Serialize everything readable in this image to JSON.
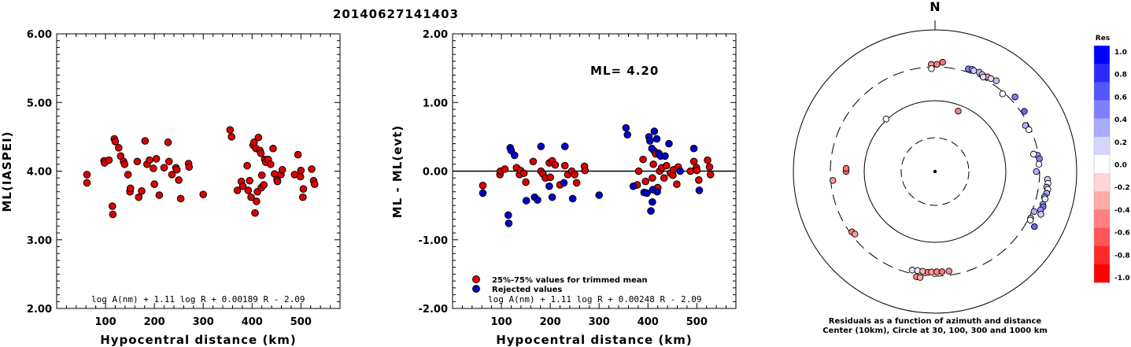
{
  "chart_data": [
    {
      "type": "scatter",
      "title": "20140627141403",
      "xlabel": "Hypocentral distance (km)",
      "ylabel": "ML(IASPEI)",
      "xlim": [
        0,
        580
      ],
      "ylim": [
        2.0,
        6.0
      ],
      "xticks": [
        "100",
        "200",
        "300",
        "400",
        "500"
      ],
      "yticks": [
        "2.00",
        "3.00",
        "4.00",
        "5.00",
        "6.00"
      ],
      "formula": "log A(nm) + 1.11 log R + 0.00189 R - 2.09",
      "series": [
        {
          "color": "#dd0000",
          "points": [
            [
              62,
              3.95
            ],
            [
              62,
              3.83
            ],
            [
              97,
              4.15
            ],
            [
              98,
              4.12
            ],
            [
              107,
              4.16
            ],
            [
              114,
              3.49
            ],
            [
              115,
              3.37
            ],
            [
              118,
              4.47
            ],
            [
              120,
              4.43
            ],
            [
              127,
              4.34
            ],
            [
              131,
              4.22
            ],
            [
              137,
              4.14
            ],
            [
              139,
              4.1
            ],
            [
              146,
              3.95
            ],
            [
              150,
              3.7
            ],
            [
              151,
              3.75
            ],
            [
              165,
              4.14
            ],
            [
              168,
              3.62
            ],
            [
              174,
              3.71
            ],
            [
              181,
              4.44
            ],
            [
              185,
              4.1
            ],
            [
              190,
              4.16
            ],
            [
              198,
              4.04
            ],
            [
              200,
              3.81
            ],
            [
              204,
              4.18
            ],
            [
              210,
              3.65
            ],
            [
              220,
              4.05
            ],
            [
              228,
              4.42
            ],
            [
              230,
              4.14
            ],
            [
              236,
              3.95
            ],
            [
              244,
              4.05
            ],
            [
              246,
              4.02
            ],
            [
              250,
              3.87
            ],
            [
              254,
              3.6
            ],
            [
              270,
              4.11
            ],
            [
              271,
              4.06
            ],
            [
              300,
              3.66
            ],
            [
              355,
              4.6
            ],
            [
              358,
              4.5
            ],
            [
              370,
              3.72
            ],
            [
              378,
              3.85
            ],
            [
              381,
              3.78
            ],
            [
              390,
              4.08
            ],
            [
              392,
              3.72
            ],
            [
              395,
              3.86
            ],
            [
              398,
              3.62
            ],
            [
              402,
              4.38
            ],
            [
              404,
              4.42
            ],
            [
              406,
              3.39
            ],
            [
              408,
              4.33
            ],
            [
              409,
              3.56
            ],
            [
              411,
              3.7
            ],
            [
              413,
              4.49
            ],
            [
              416,
              4.3
            ],
            [
              418,
              4.26
            ],
            [
              419,
              3.76
            ],
            [
              420,
              3.94
            ],
            [
              424,
              3.8
            ],
            [
              426,
              4.17
            ],
            [
              428,
              4.13
            ],
            [
              433,
              4.17
            ],
            [
              438,
              4.1
            ],
            [
              443,
              4.33
            ],
            [
              446,
              3.96
            ],
            [
              451,
              3.88
            ],
            [
              452,
              3.85
            ],
            [
              459,
              3.95
            ],
            [
              462,
              4.02
            ],
            [
              487,
              3.95
            ],
            [
              494,
              4.24
            ],
            [
              499,
              3.92
            ],
            [
              500,
              4.01
            ],
            [
              504,
              3.62
            ],
            [
              505,
              3.74
            ],
            [
              522,
              4.03
            ],
            [
              526,
              3.86
            ],
            [
              528,
              3.81
            ]
          ]
        }
      ]
    },
    {
      "type": "scatter",
      "xlabel": "Hypocentral distance (km)",
      "ylabel": "ML - ML(evt)",
      "xlim": [
        0,
        580
      ],
      "ylim": [
        -2.0,
        2.0
      ],
      "xticks": [
        "100",
        "200",
        "300",
        "400",
        "500"
      ],
      "yticks": [
        "-2.00",
        "-1.00",
        "0.00",
        "1.00",
        "2.00"
      ],
      "annotation": "ML= 4.20",
      "formula": "log A(nm) + 1.11 log R + 0.00248 R - 2.09",
      "legend": [
        "25%-75% values for trimmed mean",
        "Rejected values"
      ],
      "series": [
        {
          "name": "25%-75% values for trimmed mean",
          "color": "#dd0000",
          "points": [
            [
              62,
              -0.21
            ],
            [
              97,
              -0.05
            ],
            [
              98,
              0.0
            ],
            [
              107,
              0.03
            ],
            [
              131,
              0.05
            ],
            [
              137,
              -0.05
            ],
            [
              139,
              0.01
            ],
            [
              146,
              -0.03
            ],
            [
              150,
              -0.16
            ],
            [
              165,
              0.14
            ],
            [
              181,
              0.0
            ],
            [
              185,
              -0.04
            ],
            [
              190,
              -0.1
            ],
            [
              198,
              0.12
            ],
            [
              200,
              -0.09
            ],
            [
              204,
              0.15
            ],
            [
              210,
              0.09
            ],
            [
              220,
              -0.2
            ],
            [
              230,
              0.08
            ],
            [
              236,
              -0.05
            ],
            [
              244,
              0.0
            ],
            [
              250,
              -0.05
            ],
            [
              254,
              -0.17
            ],
            [
              270,
              0.07
            ],
            [
              271,
              0.01
            ],
            [
              378,
              -0.2
            ],
            [
              381,
              0.0
            ],
            [
              390,
              0.17
            ],
            [
              395,
              -0.15
            ],
            [
              409,
              -0.1
            ],
            [
              411,
              0.1
            ],
            [
              413,
              0.29
            ],
            [
              416,
              0.25
            ],
            [
              420,
              -0.24
            ],
            [
              424,
              0.0
            ],
            [
              428,
              0.05
            ],
            [
              433,
              -0.1
            ],
            [
              438,
              0.08
            ],
            [
              446,
              -0.03
            ],
            [
              451,
              -0.06
            ],
            [
              452,
              0.02
            ],
            [
              459,
              -0.19
            ],
            [
              462,
              0.06
            ],
            [
              487,
              0.0
            ],
            [
              494,
              0.14
            ],
            [
              499,
              0.05
            ],
            [
              500,
              0.01
            ],
            [
              504,
              -0.13
            ],
            [
              522,
              0.16
            ],
            [
              526,
              0.06
            ],
            [
              528,
              -0.05
            ]
          ]
        },
        {
          "name": "Rejected values",
          "color": "#0000cc",
          "points": [
            [
              62,
              -0.32
            ],
            [
              114,
              -0.64
            ],
            [
              115,
              -0.76
            ],
            [
              118,
              0.34
            ],
            [
              120,
              0.3
            ],
            [
              127,
              0.23
            ],
            [
              151,
              -0.43
            ],
            [
              168,
              -0.38
            ],
            [
              174,
              -0.42
            ],
            [
              181,
              0.36
            ],
            [
              198,
              -0.22
            ],
            [
              204,
              -0.38
            ],
            [
              228,
              -0.17
            ],
            [
              230,
              0.36
            ],
            [
              246,
              -0.4
            ],
            [
              300,
              -0.35
            ],
            [
              355,
              0.63
            ],
            [
              358,
              0.53
            ],
            [
              370,
              -0.22
            ],
            [
              392,
              -0.31
            ],
            [
              398,
              -0.32
            ],
            [
              402,
              0.5
            ],
            [
              404,
              0.44
            ],
            [
              406,
              -0.58
            ],
            [
              408,
              0.33
            ],
            [
              409,
              -0.45
            ],
            [
              410,
              -0.27
            ],
            [
              413,
              0.58
            ],
            [
              418,
              0.47
            ],
            [
              419,
              -0.3
            ],
            [
              422,
              0.26
            ],
            [
              426,
              0.22
            ],
            [
              435,
              0.22
            ],
            [
              443,
              0.4
            ],
            [
              466,
              0.0
            ],
            [
              494,
              0.33
            ],
            [
              505,
              -0.28
            ]
          ]
        }
      ]
    },
    {
      "type": "scatter",
      "subtype": "polar-residuals",
      "north_label": "N",
      "caption_line1": "Residuals as a function of azimuth and distance",
      "caption_line2": "Center (10km), Circle at 30, 100, 300 and 1000 km",
      "rings_km": [
        30,
        100,
        300,
        1000
      ],
      "colorbar": {
        "title": "Res",
        "labels": [
          "1.0",
          "0.8",
          "0.6",
          "0.4",
          "0.2",
          "0.0",
          "-0.2",
          "-0.4",
          "-0.6",
          "-0.8",
          "-1.0"
        ],
        "colors": [
          "#0000ff",
          "#2b2bff",
          "#5555ff",
          "#8080ff",
          "#aaaaff",
          "#d5d5ff",
          "#ffffff",
          "#ffd5d5",
          "#ffaaaa",
          "#ff8080",
          "#ff5555",
          "#ff2b2b",
          "#ff0000"
        ]
      },
      "points": [
        {
          "az": 4,
          "dist": 352,
          "res": -0.55
        },
        {
          "az": 358,
          "dist": 327,
          "res": -0.45
        },
        {
          "az": 1,
          "dist": 326,
          "res": -0.5
        },
        {
          "az": 18,
          "dist": 333,
          "res": 0.5
        },
        {
          "az": 20,
          "dist": 342,
          "res": 0.4
        },
        {
          "az": 21,
          "dist": 336,
          "res": 0.2
        },
        {
          "az": 24,
          "dist": 343,
          "res": 0.3
        },
        {
          "az": 26,
          "dist": 332,
          "res": -0.2
        },
        {
          "az": 29,
          "dist": 336,
          "res": -0.35
        },
        {
          "az": 31,
          "dist": 339,
          "res": 0.15
        },
        {
          "az": 34,
          "dist": 351,
          "res": 0.25
        },
        {
          "az": 27,
          "dist": 314,
          "res": 0.15
        },
        {
          "az": 358,
          "dist": 284,
          "res": 0.0
        },
        {
          "az": 41,
          "dist": 284,
          "res": 0.0
        },
        {
          "az": 47,
          "dist": 350,
          "res": 0.5
        },
        {
          "az": 56,
          "dist": 331,
          "res": 0.6
        },
        {
          "az": 63,
          "dist": 270,
          "res": 0.3
        },
        {
          "az": 66,
          "dist": 282,
          "res": 0.0
        },
        {
          "az": 317,
          "dist": 103,
          "res": 0.0
        },
        {
          "az": 21,
          "dist": 82,
          "res": -0.5
        },
        {
          "az": 81,
          "dist": 292,
          "res": 0.4
        },
        {
          "az": 83,
          "dist": 305,
          "res": 0.5
        },
        {
          "az": 86,
          "dist": 295,
          "res": 0.0
        },
        {
          "az": 80,
          "dist": 258,
          "res": 0.0
        },
        {
          "az": 90,
          "dist": 269,
          "res": 0.3
        },
        {
          "az": 94,
          "dist": 390,
          "res": 0.2
        },
        {
          "az": 96,
          "dist": 400,
          "res": 0.0
        },
        {
          "az": 98,
          "dist": 390,
          "res": 0.3
        },
        {
          "az": 99,
          "dist": 410,
          "res": 0.0
        },
        {
          "az": 101,
          "dist": 402,
          "res": 0.35
        },
        {
          "az": 103,
          "dist": 385,
          "res": 0.45
        },
        {
          "az": 104,
          "dist": 398,
          "res": 0.0
        },
        {
          "az": 107,
          "dist": 390,
          "res": 0.3
        },
        {
          "az": 108,
          "dist": 402,
          "res": 0.55
        },
        {
          "az": 110,
          "dist": 385,
          "res": 0.4
        },
        {
          "az": 112,
          "dist": 408,
          "res": 0.2
        },
        {
          "az": 112,
          "dist": 322,
          "res": 0.3
        },
        {
          "az": 116,
          "dist": 317,
          "res": -0.3
        },
        {
          "az": 119,
          "dist": 402,
          "res": 0.6
        },
        {
          "az": 117,
          "dist": 323,
          "res": 0.0
        },
        {
          "az": 270,
          "dist": 180,
          "res": -0.6
        },
        {
          "az": 272,
          "dist": 180,
          "res": -0.55
        },
        {
          "az": 265,
          "dist": 280,
          "res": -0.4
        },
        {
          "az": 234,
          "dist": 282,
          "res": -0.5
        },
        {
          "az": 232,
          "dist": 272,
          "res": -0.4
        },
        {
          "az": 193,
          "dist": 268,
          "res": 0.1
        },
        {
          "az": 190,
          "dist": 263,
          "res": -0.1
        },
        {
          "az": 187,
          "dist": 262,
          "res": -0.3
        },
        {
          "az": 184,
          "dist": 267,
          "res": -0.5
        },
        {
          "az": 182,
          "dist": 263,
          "res": -0.4
        },
        {
          "az": 179,
          "dist": 261,
          "res": -0.5
        },
        {
          "az": 176,
          "dist": 262,
          "res": -0.55
        },
        {
          "az": 172,
          "dist": 263,
          "res": -0.45
        },
        {
          "az": 190,
          "dist": 322,
          "res": -0.45
        },
        {
          "az": 188,
          "dist": 324,
          "res": -0.35
        }
      ]
    }
  ]
}
